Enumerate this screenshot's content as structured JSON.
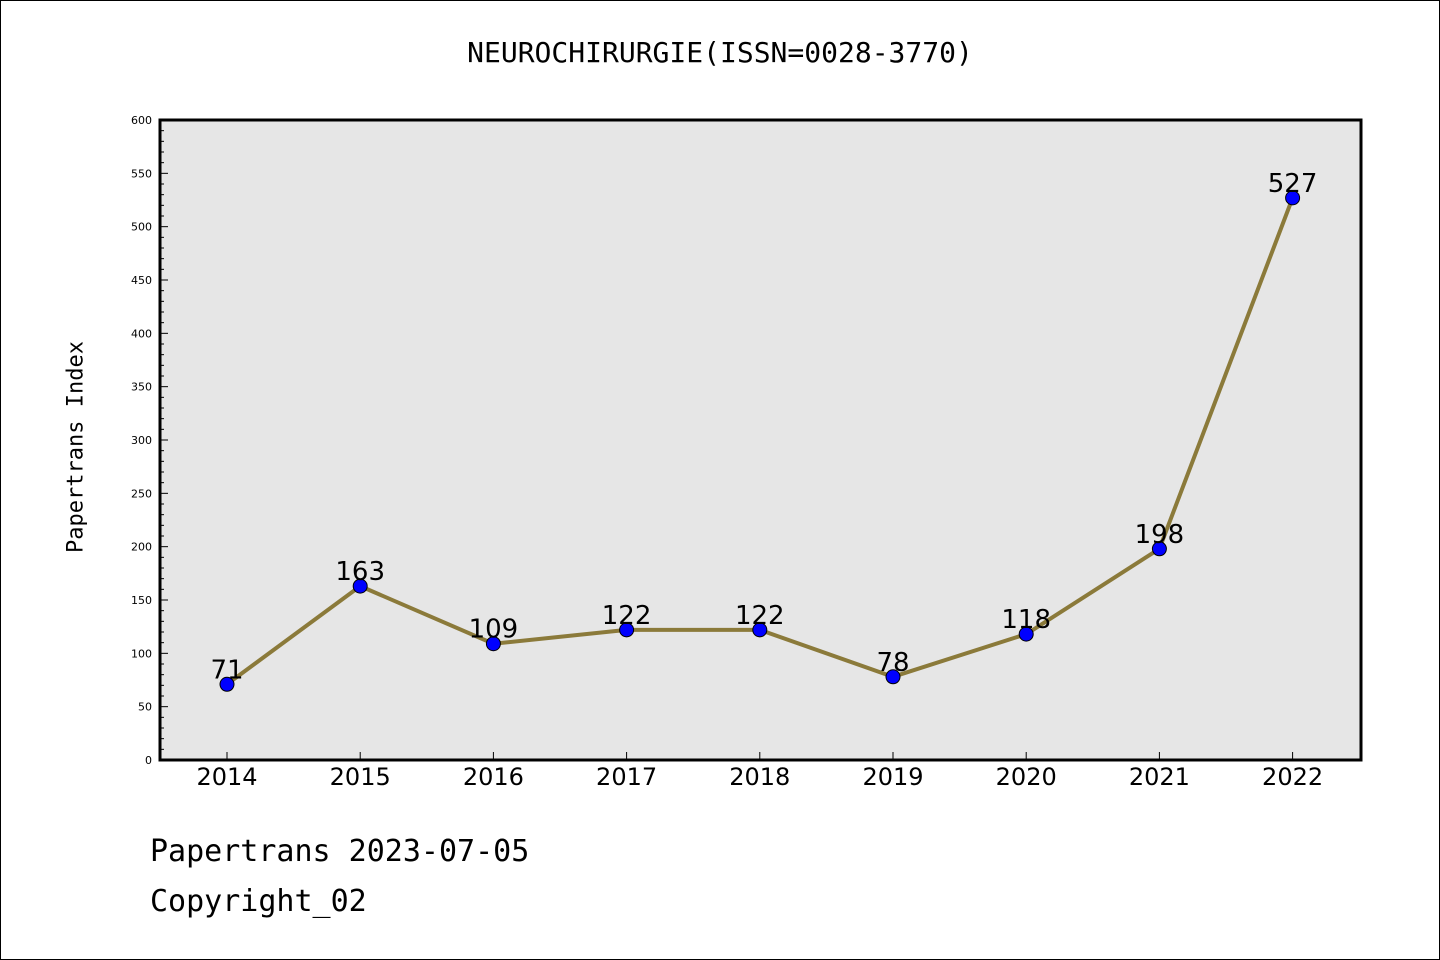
{
  "chart_data": {
    "type": "line",
    "title": "NEUROCHIRURGIE(ISSN=0028-3770)",
    "xlabel": "",
    "ylabel": "Papertrans Index",
    "categories": [
      "2014",
      "2015",
      "2016",
      "2017",
      "2018",
      "2019",
      "2020",
      "2021",
      "2022"
    ],
    "series": [
      {
        "values": [
          71,
          163,
          109,
          122,
          122,
          78,
          118,
          198,
          527
        ]
      }
    ],
    "ylim": [
      0,
      600
    ],
    "yticks": [
      0,
      50,
      100,
      150,
      200,
      250,
      300,
      350,
      400,
      450,
      500,
      550,
      600
    ],
    "grid": false,
    "colors": {
      "line": "#8b7a3a",
      "marker": "#0000ff",
      "plot_background": "#e6e6e6"
    }
  },
  "footer": {
    "source": "Papertrans 2023-07-05",
    "copyright": "Copyright_02"
  }
}
